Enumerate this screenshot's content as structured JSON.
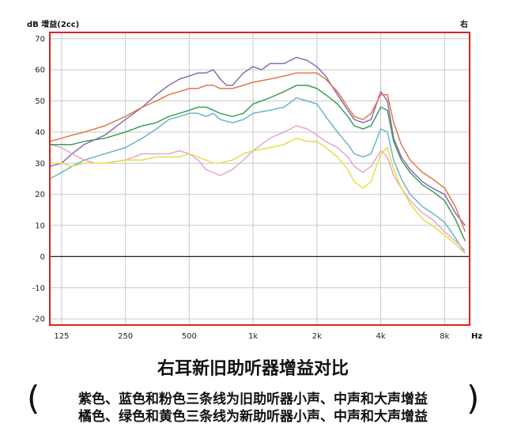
{
  "chart_data": {
    "type": "line",
    "ylabel": "dB 增益(2cc)",
    "corner_label": "右",
    "x_unit": "Hz",
    "x_scale": "log",
    "xlim": [
      110,
      10500
    ],
    "ylim": [
      -22,
      72
    ],
    "grid": true,
    "x_ticks": [
      125,
      250,
      500,
      1000,
      2000,
      4000,
      8000
    ],
    "x_tick_labels": [
      "125",
      "250",
      "500",
      "1k",
      "2k",
      "4k",
      "8k"
    ],
    "y_ticks": [
      70,
      60,
      50,
      40,
      30,
      20,
      10,
      0,
      -10,
      -20
    ],
    "series": [
      {
        "color": "#8b6bb5",
        "points": [
          [
            110,
            29
          ],
          [
            125,
            30
          ],
          [
            140,
            33
          ],
          [
            160,
            36
          ],
          [
            200,
            39
          ],
          [
            250,
            44
          ],
          [
            300,
            48
          ],
          [
            350,
            52
          ],
          [
            400,
            55
          ],
          [
            450,
            57
          ],
          [
            500,
            58
          ],
          [
            550,
            59
          ],
          [
            600,
            59
          ],
          [
            650,
            60
          ],
          [
            700,
            57
          ],
          [
            750,
            55
          ],
          [
            800,
            55
          ],
          [
            900,
            59
          ],
          [
            1000,
            61
          ],
          [
            1100,
            60
          ],
          [
            1200,
            62
          ],
          [
            1400,
            62
          ],
          [
            1600,
            64
          ],
          [
            1800,
            63
          ],
          [
            2000,
            61
          ],
          [
            2200,
            58
          ],
          [
            2500,
            52
          ],
          [
            2800,
            47
          ],
          [
            3000,
            44
          ],
          [
            3300,
            43
          ],
          [
            3600,
            44
          ],
          [
            4000,
            53
          ],
          [
            4300,
            50
          ],
          [
            4600,
            38
          ],
          [
            5000,
            32
          ],
          [
            5500,
            28
          ],
          [
            6300,
            24
          ],
          [
            7000,
            22
          ],
          [
            8000,
            20
          ],
          [
            9000,
            14
          ],
          [
            10000,
            10
          ]
        ]
      },
      {
        "color": "#6cb4c9",
        "points": [
          [
            110,
            25
          ],
          [
            125,
            27
          ],
          [
            140,
            29
          ],
          [
            160,
            31
          ],
          [
            200,
            33
          ],
          [
            250,
            35
          ],
          [
            300,
            38
          ],
          [
            350,
            41
          ],
          [
            400,
            44
          ],
          [
            450,
            45
          ],
          [
            500,
            46
          ],
          [
            550,
            46
          ],
          [
            600,
            45
          ],
          [
            650,
            46
          ],
          [
            700,
            44
          ],
          [
            800,
            43
          ],
          [
            900,
            44
          ],
          [
            1000,
            46
          ],
          [
            1200,
            47
          ],
          [
            1400,
            48
          ],
          [
            1600,
            51
          ],
          [
            1800,
            50
          ],
          [
            2000,
            49
          ],
          [
            2200,
            45
          ],
          [
            2500,
            40
          ],
          [
            2800,
            36
          ],
          [
            3000,
            33
          ],
          [
            3300,
            32
          ],
          [
            3600,
            33
          ],
          [
            4000,
            41
          ],
          [
            4300,
            40
          ],
          [
            4600,
            31
          ],
          [
            5000,
            25
          ],
          [
            5500,
            20
          ],
          [
            6300,
            16
          ],
          [
            7000,
            14
          ],
          [
            8000,
            11
          ],
          [
            9000,
            6
          ],
          [
            10000,
            1
          ]
        ]
      },
      {
        "color": "#e5a6cf",
        "points": [
          [
            110,
            36
          ],
          [
            125,
            35
          ],
          [
            140,
            33
          ],
          [
            160,
            31
          ],
          [
            180,
            30
          ],
          [
            200,
            30
          ],
          [
            250,
            31
          ],
          [
            300,
            33
          ],
          [
            350,
            33
          ],
          [
            400,
            33
          ],
          [
            450,
            34
          ],
          [
            500,
            33
          ],
          [
            550,
            31
          ],
          [
            600,
            28
          ],
          [
            650,
            27
          ],
          [
            700,
            26
          ],
          [
            800,
            28
          ],
          [
            900,
            31
          ],
          [
            1000,
            34
          ],
          [
            1200,
            38
          ],
          [
            1400,
            40
          ],
          [
            1600,
            42
          ],
          [
            1800,
            41
          ],
          [
            2000,
            39
          ],
          [
            2200,
            37
          ],
          [
            2500,
            35
          ],
          [
            2800,
            32
          ],
          [
            3000,
            29
          ],
          [
            3300,
            27
          ],
          [
            3600,
            29
          ],
          [
            4000,
            34
          ],
          [
            4300,
            32
          ],
          [
            4600,
            26
          ],
          [
            5000,
            22
          ],
          [
            5500,
            18
          ],
          [
            6300,
            14
          ],
          [
            7000,
            12
          ],
          [
            8000,
            8
          ],
          [
            9000,
            5
          ],
          [
            10000,
            2
          ]
        ]
      },
      {
        "color": "#e07848",
        "points": [
          [
            110,
            37
          ],
          [
            125,
            38
          ],
          [
            140,
            39
          ],
          [
            160,
            40
          ],
          [
            200,
            42
          ],
          [
            250,
            45
          ],
          [
            300,
            48
          ],
          [
            350,
            50
          ],
          [
            400,
            52
          ],
          [
            450,
            53
          ],
          [
            500,
            54
          ],
          [
            550,
            54
          ],
          [
            600,
            55
          ],
          [
            650,
            55
          ],
          [
            700,
            54
          ],
          [
            800,
            54
          ],
          [
            900,
            55
          ],
          [
            1000,
            56
          ],
          [
            1200,
            57
          ],
          [
            1400,
            58
          ],
          [
            1600,
            59
          ],
          [
            1800,
            59
          ],
          [
            2000,
            59
          ],
          [
            2200,
            57
          ],
          [
            2500,
            53
          ],
          [
            2800,
            48
          ],
          [
            3000,
            45
          ],
          [
            3300,
            44
          ],
          [
            3600,
            46
          ],
          [
            4000,
            52
          ],
          [
            4300,
            52
          ],
          [
            4600,
            43
          ],
          [
            5000,
            36
          ],
          [
            5500,
            31
          ],
          [
            6300,
            27
          ],
          [
            7000,
            25
          ],
          [
            8000,
            22
          ],
          [
            9000,
            16
          ],
          [
            10000,
            8
          ]
        ]
      },
      {
        "color": "#3d9e57",
        "points": [
          [
            110,
            36
          ],
          [
            125,
            36
          ],
          [
            140,
            36
          ],
          [
            160,
            37
          ],
          [
            200,
            38
          ],
          [
            250,
            40
          ],
          [
            300,
            42
          ],
          [
            350,
            43
          ],
          [
            400,
            45
          ],
          [
            450,
            46
          ],
          [
            500,
            47
          ],
          [
            550,
            48
          ],
          [
            600,
            48
          ],
          [
            650,
            47
          ],
          [
            700,
            46
          ],
          [
            800,
            45
          ],
          [
            900,
            46
          ],
          [
            1000,
            49
          ],
          [
            1200,
            51
          ],
          [
            1400,
            53
          ],
          [
            1600,
            55
          ],
          [
            1800,
            55
          ],
          [
            2000,
            54
          ],
          [
            2200,
            52
          ],
          [
            2500,
            49
          ],
          [
            2800,
            45
          ],
          [
            3000,
            42
          ],
          [
            3300,
            41
          ],
          [
            3600,
            42
          ],
          [
            4000,
            48
          ],
          [
            4300,
            47
          ],
          [
            4600,
            37
          ],
          [
            5000,
            31
          ],
          [
            5500,
            27
          ],
          [
            6300,
            23
          ],
          [
            7000,
            21
          ],
          [
            8000,
            18
          ],
          [
            9000,
            12
          ],
          [
            10000,
            5
          ]
        ]
      },
      {
        "color": "#e2df48",
        "points": [
          [
            110,
            30
          ],
          [
            125,
            30
          ],
          [
            140,
            29
          ],
          [
            160,
            30
          ],
          [
            200,
            30
          ],
          [
            250,
            31
          ],
          [
            300,
            31
          ],
          [
            350,
            32
          ],
          [
            400,
            32
          ],
          [
            450,
            32
          ],
          [
            500,
            33
          ],
          [
            550,
            32
          ],
          [
            600,
            31
          ],
          [
            650,
            30
          ],
          [
            700,
            30
          ],
          [
            800,
            31
          ],
          [
            900,
            33
          ],
          [
            1000,
            34
          ],
          [
            1200,
            35
          ],
          [
            1400,
            36
          ],
          [
            1600,
            38
          ],
          [
            1800,
            37
          ],
          [
            2000,
            37
          ],
          [
            2200,
            35
          ],
          [
            2500,
            32
          ],
          [
            2800,
            28
          ],
          [
            3000,
            24
          ],
          [
            3300,
            22
          ],
          [
            3600,
            24
          ],
          [
            4000,
            33
          ],
          [
            4300,
            35
          ],
          [
            4600,
            28
          ],
          [
            5000,
            22
          ],
          [
            5500,
            17
          ],
          [
            6300,
            12
          ],
          [
            7000,
            10
          ],
          [
            8000,
            7
          ],
          [
            9000,
            4
          ],
          [
            10000,
            1
          ]
        ]
      }
    ]
  },
  "caption": {
    "title": "右耳新旧助听器增益对比",
    "paren_open": "(",
    "paren_close": ")",
    "line1": "紫色、蓝色和粉色三条线为旧助听器小声、中声和大声增益",
    "line2": "橘色、绿色和黄色三条线为新助听器小声、中声和大声增益"
  }
}
